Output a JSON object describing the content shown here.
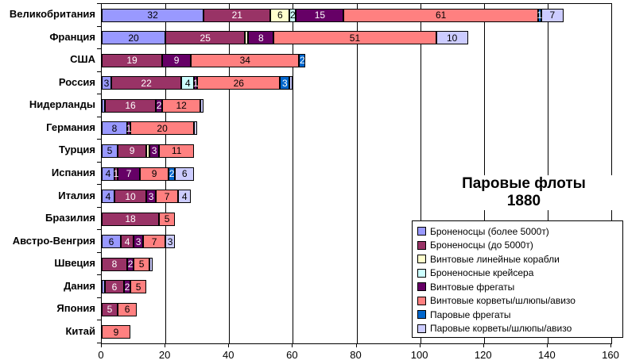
{
  "title": {
    "line1": "Паровые флоты",
    "line2": "1880"
  },
  "chart_data": {
    "type": "bar",
    "orientation": "horizontal",
    "stacked": true,
    "title": "Паровые флоты 1880",
    "xlabel": "",
    "ylabel": "",
    "xlim": [
      0,
      160
    ],
    "x_ticks": [
      0,
      20,
      40,
      60,
      80,
      100,
      120,
      140,
      160
    ],
    "grid": true,
    "legend_position": "bottom-right",
    "categories": [
      "Великобритания",
      "Франция",
      "США",
      "Россия",
      "Нидерланды",
      "Германия",
      "Турция",
      "Испания",
      "Италия",
      "Бразилия",
      "Австро-Венгрия",
      "Швеция",
      "Дания",
      "Япония",
      "Китай"
    ],
    "series": [
      {
        "name": "Броненосцы (более 5000т)",
        "color": "#9999FF",
        "label_color": "#000000",
        "values": [
          32,
          20,
          0,
          3,
          1,
          8,
          5,
          4,
          4,
          0,
          6,
          0,
          1,
          0,
          0
        ]
      },
      {
        "name": "Броненосцы (до 5000т)",
        "color": "#993366",
        "label_color": "#FFFFFF",
        "values": [
          21,
          25,
          19,
          22,
          16,
          0,
          9,
          1,
          10,
          18,
          4,
          8,
          6,
          5,
          0
        ]
      },
      {
        "name": "Винтовые линейные корабли",
        "color": "#FFFFCC",
        "label_color": "#000000",
        "values": [
          6,
          1,
          0,
          0,
          0,
          0,
          1,
          0,
          0,
          0,
          0,
          0,
          0,
          0,
          0
        ]
      },
      {
        "name": "Броненосные крейсера",
        "color": "#CCFFFF",
        "label_color": "#000000",
        "values": [
          2,
          0,
          0,
          4,
          0,
          0,
          0,
          0,
          0,
          0,
          0,
          0,
          0,
          0,
          0
        ]
      },
      {
        "name": "Винтовые фрегаты",
        "color": "#660066",
        "label_color": "#FFFFFF",
        "values": [
          15,
          8,
          9,
          1,
          2,
          1,
          3,
          7,
          3,
          0,
          3,
          2,
          2,
          0,
          0
        ]
      },
      {
        "name": "Винтовые корветы/шлюпы/авизо",
        "color": "#FF8080",
        "label_color": "#000000",
        "values": [
          61,
          51,
          34,
          26,
          12,
          20,
          11,
          9,
          7,
          5,
          7,
          5,
          5,
          6,
          9
        ]
      },
      {
        "name": "Паровые фрегаты",
        "color": "#0066CC",
        "label_color": "#FFFFFF",
        "values": [
          1,
          0,
          2,
          3,
          0,
          0,
          0,
          2,
          0,
          0,
          0,
          0,
          0,
          0,
          0
        ]
      },
      {
        "name": "Паровые корветы/шлюпы/авизо",
        "color": "#CCCCFF",
        "label_color": "#000000",
        "values": [
          7,
          10,
          0,
          1,
          1,
          1,
          0,
          6,
          4,
          0,
          3,
          1,
          0,
          0,
          0
        ]
      }
    ]
  }
}
